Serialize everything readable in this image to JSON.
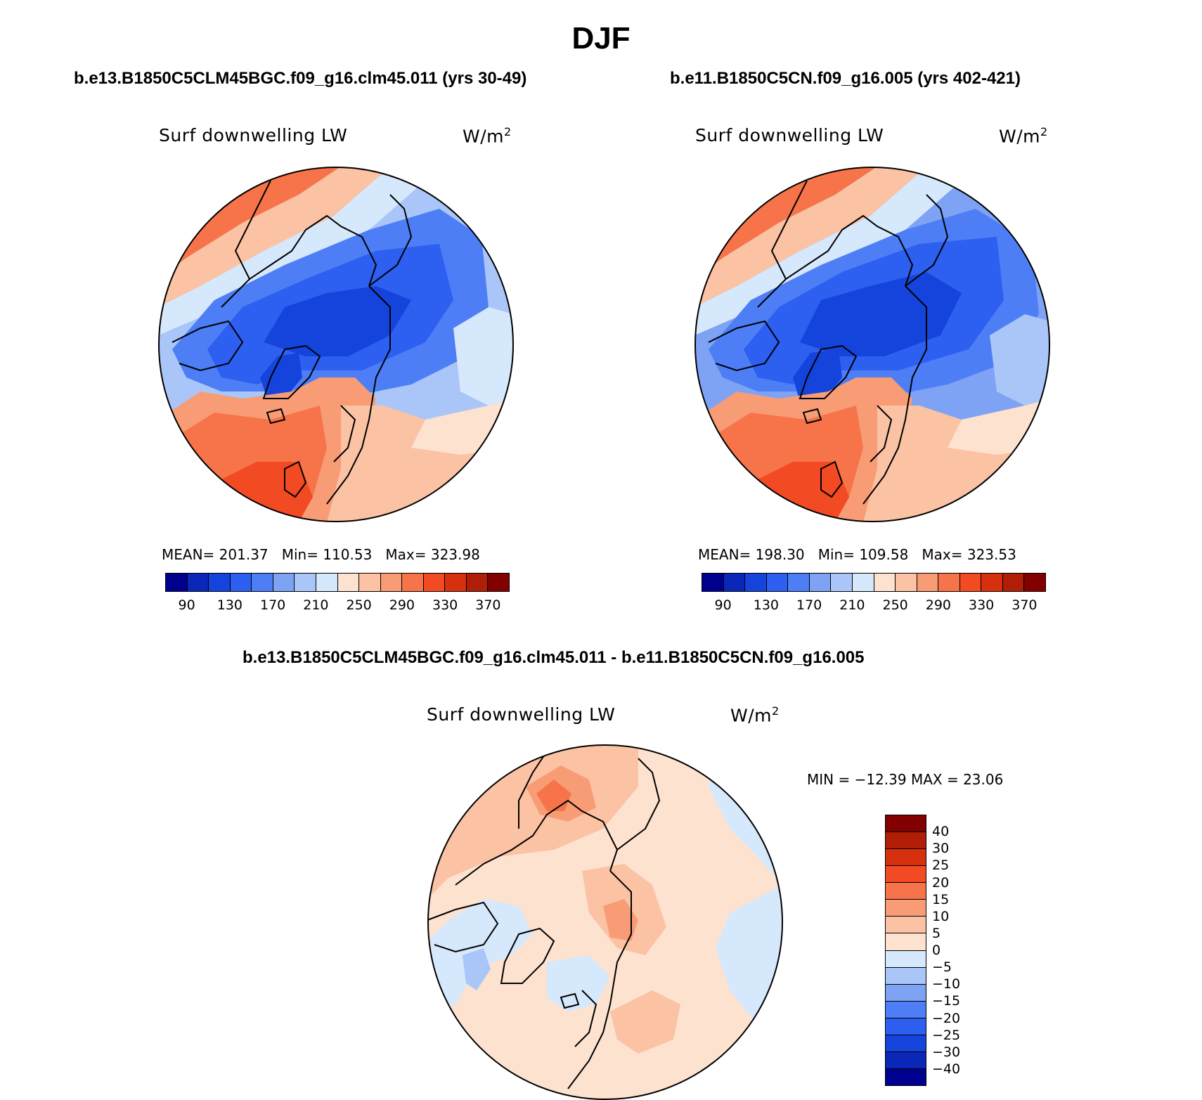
{
  "title": "DJF",
  "colors": {
    "abs_scale": [
      "#00008f",
      "#0a27b8",
      "#1444dc",
      "#2d5ff0",
      "#4d7ef5",
      "#7ea3f5",
      "#aac6f8",
      "#d6e8fb",
      "#fde2d0",
      "#fbc2a4",
      "#f89c76",
      "#f7744a",
      "#f24a22",
      "#d6300e",
      "#b01e08",
      "#830000"
    ],
    "diff_scale": [
      "#830000",
      "#b01e08",
      "#d6300e",
      "#f24a22",
      "#f7744a",
      "#f89c76",
      "#fbc2a4",
      "#fde2d0",
      "#d6e8fb",
      "#aac6f8",
      "#7ea3f5",
      "#4d7ef5",
      "#2d5ff0",
      "#1444dc",
      "#0a27b8",
      "#00008f"
    ]
  },
  "chart_data": [
    {
      "type": "heatmap",
      "projection": "north-polar-stereographic",
      "title": "b.e13.B1850C5CLM45BGC.f09_g16.clm45.011 (yrs 30-49)",
      "variable": "Surf downwelling LW",
      "units_prefix": "W/m",
      "units_exp": "2",
      "stats": {
        "mean": "201.37",
        "min": "110.53",
        "max": "323.98"
      },
      "mean_label": "MEAN=",
      "min_label": "Min=",
      "max_label": "Max=",
      "colorbar_ticks": [
        "90",
        "130",
        "170",
        "210",
        "250",
        "290",
        "330",
        "370"
      ]
    },
    {
      "type": "heatmap",
      "projection": "north-polar-stereographic",
      "title": "b.e11.B1850C5CN.f09_g16.005 (yrs 402-421)",
      "variable": "Surf downwelling LW",
      "units_prefix": "W/m",
      "units_exp": "2",
      "stats": {
        "mean": "198.30",
        "min": "109.58",
        "max": "323.53"
      },
      "mean_label": "MEAN=",
      "min_label": "Min=",
      "max_label": "Max=",
      "colorbar_ticks": [
        "90",
        "130",
        "170",
        "210",
        "250",
        "290",
        "330",
        "370"
      ]
    },
    {
      "type": "heatmap",
      "projection": "north-polar-stereographic",
      "title": "b.e13.B1850C5CLM45BGC.f09_g16.clm45.011 - b.e11.B1850C5CN.f09_g16.005",
      "variable": "Surf downwelling LW",
      "units_prefix": "W/m",
      "units_exp": "2",
      "minmax_text": "MIN = −12.39 MAX =  23.06",
      "colorbar_ticks": [
        "40",
        "30",
        "25",
        "20",
        "15",
        "10",
        "5",
        "0",
        "−5",
        "−10",
        "−15",
        "−20",
        "−25",
        "−30",
        "−40"
      ]
    }
  ]
}
